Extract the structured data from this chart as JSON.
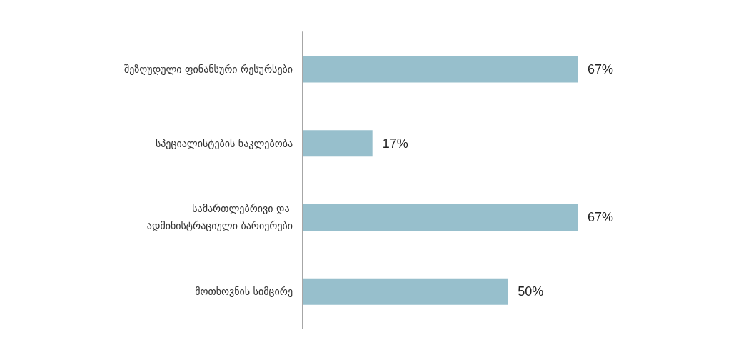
{
  "chart_data": {
    "type": "bar",
    "orientation": "horizontal",
    "categories": [
      "შეზღუდული ფინანსური რესურსები",
      "სპეციალისტების ნაკლებობა",
      "სამართლებრივი და ადმინისტრაციული ბარიერები",
      "მოთხოვნის სიმცირე"
    ],
    "values": [
      67,
      17,
      67,
      50
    ],
    "value_labels": [
      "67%",
      "17%",
      "67%",
      "50%"
    ],
    "color": "#97bfcc"
  }
}
